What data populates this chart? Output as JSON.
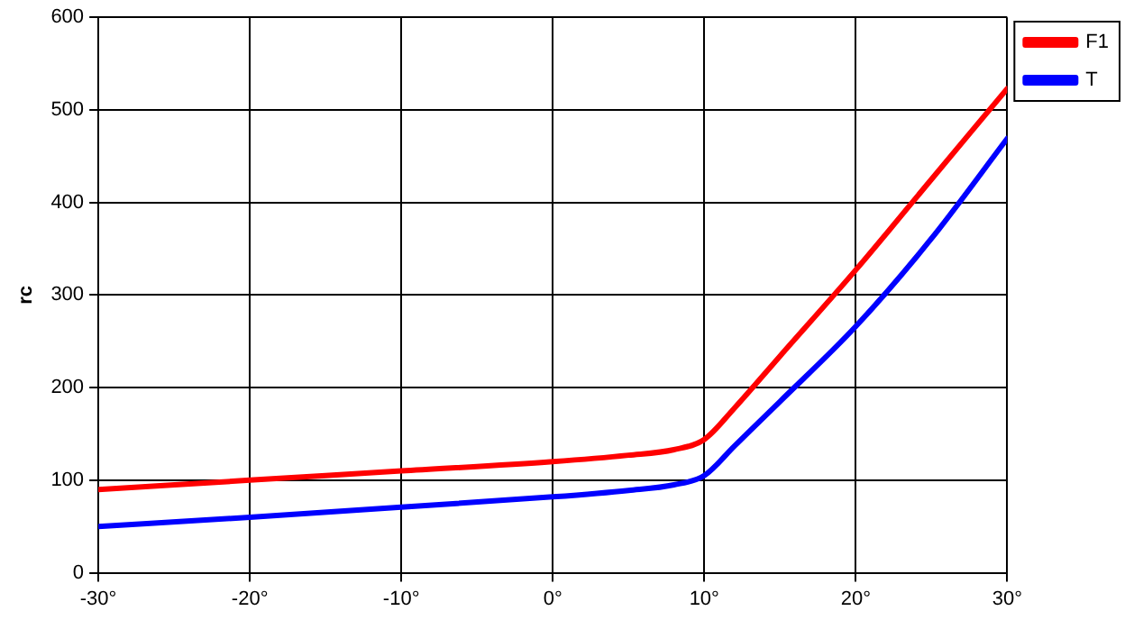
{
  "chart_data": {
    "type": "line",
    "ylabel": "rc",
    "x": [
      -30,
      -20,
      -10,
      0,
      5,
      8,
      10,
      12,
      15,
      20,
      25,
      30
    ],
    "series": [
      {
        "name": "F1",
        "color": "#ff0000",
        "values": [
          90,
          100,
          110,
          120,
          127,
          133,
          144,
          178,
          234,
          327,
          425,
          523
        ]
      },
      {
        "name": "T",
        "color": "#0000ff",
        "values": [
          50,
          60,
          71,
          82,
          89,
          95,
          105,
          137,
          185,
          266,
          361,
          469
        ]
      }
    ],
    "xlim": [
      -30,
      30
    ],
    "xticks": [
      {
        "value": -30,
        "label": "-30°"
      },
      {
        "value": -20,
        "label": "-20°"
      },
      {
        "value": -10,
        "label": "-10°"
      },
      {
        "value": 0,
        "label": "0°"
      },
      {
        "value": 10,
        "label": "10°"
      },
      {
        "value": 20,
        "label": "20°"
      },
      {
        "value": 30,
        "label": "30°"
      }
    ],
    "ylim": [
      0,
      600
    ],
    "yticks": [
      0,
      100,
      200,
      300,
      400,
      500,
      600
    ],
    "grid": true,
    "legend": "right",
    "marker": "none",
    "line_style": "solid"
  }
}
